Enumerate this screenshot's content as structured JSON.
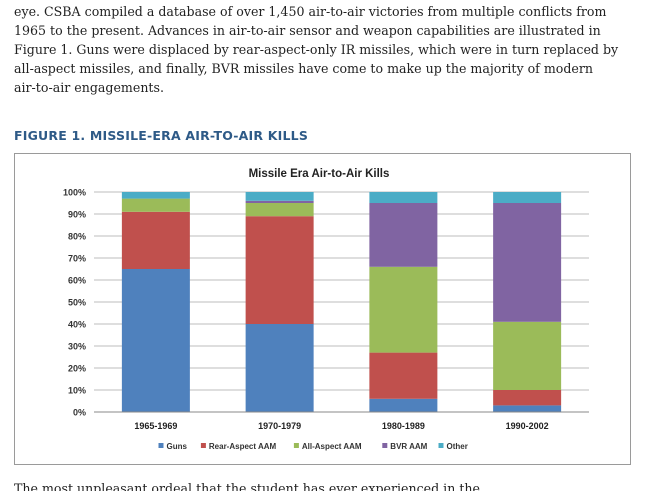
{
  "paragraph": {
    "lines": [
      "eye. CSBA compiled a database of over 1,450 air-to-air victories from multiple conflicts from",
      "1965 to the present. Advances in air-to-air sensor and weapon capabilities are illustrated in",
      "Figure 1. Guns were displaced by rear-aspect-only IR missiles, which were in turn replaced by",
      "all-aspect missiles, and finally, BVR missiles have come to make up the majority of modern",
      "air-to-air engagements."
    ]
  },
  "figure": {
    "caption": "FIGURE 1. MISSILE-ERA AIR-TO-AIR KILLS"
  },
  "chart_data": {
    "type": "bar",
    "stacked": true,
    "title": "Missile Era Air-to-Air Kills",
    "xlabel": "",
    "ylabel": "",
    "categories": [
      "1965-1969",
      "1970-1979",
      "1980-1989",
      "1990-2002"
    ],
    "ylim": [
      0,
      100
    ],
    "yticks": [
      0,
      10,
      20,
      30,
      40,
      50,
      60,
      70,
      80,
      90,
      100
    ],
    "ytick_suffix": "%",
    "grid": true,
    "legend": "bottom",
    "series": [
      {
        "name": "Guns",
        "color": "#4f81bd",
        "values": [
          65,
          40,
          6,
          3
        ]
      },
      {
        "name": "Rear-Aspect AAM",
        "color": "#c0504d",
        "values": [
          26,
          49,
          21,
          7
        ]
      },
      {
        "name": "All-Aspect AAM",
        "color": "#9bbb59",
        "values": [
          6,
          6,
          39,
          31
        ]
      },
      {
        "name": "BVR AAM",
        "color": "#8064a2",
        "values": [
          0,
          1,
          29,
          54
        ]
      },
      {
        "name": "Other",
        "color": "#4bacc6",
        "values": [
          3,
          4,
          5,
          5
        ]
      }
    ]
  },
  "footer_text": "The most unpleasant ordeal that the student has ever experienced in the ..."
}
